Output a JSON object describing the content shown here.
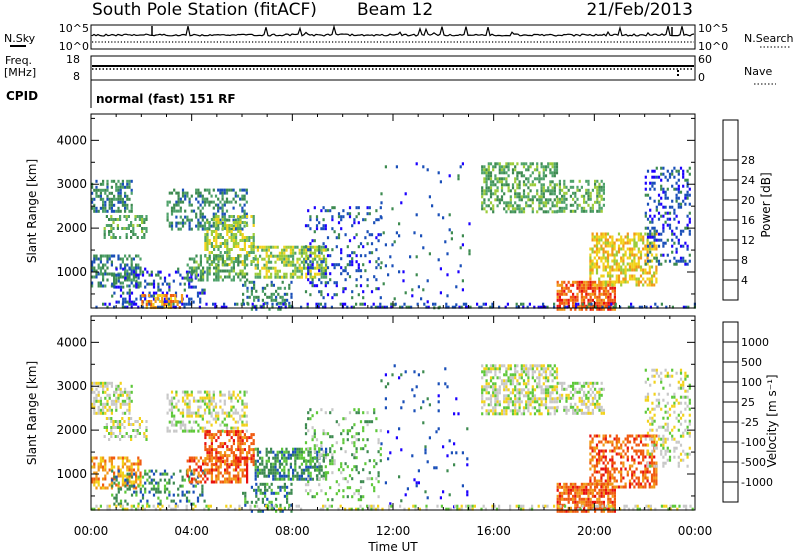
{
  "header": {
    "station": "South Pole Station (fitACF)",
    "beam": "Beam 12",
    "date": "21/Feb/2013"
  },
  "summary_panels": {
    "nsky": {
      "label": "N.Sky",
      "tick_top": "10^5",
      "tick_bottom": "10^0"
    },
    "nsearch": {
      "label": "N.Search",
      "tick_top": "10^5",
      "tick_bottom": "10^0"
    },
    "freq": {
      "label_line1": "Freq.",
      "label_line2": "[MHz]",
      "tick_top": "18",
      "tick_bottom": "8"
    },
    "nave": {
      "label": "Nave",
      "tick_top": "60",
      "tick_bottom": "0"
    },
    "cpid": {
      "label": "CPID",
      "value": "normal (fast) 151 RF"
    }
  },
  "chart_data": [
    {
      "type": "heatmap",
      "name_key": "power",
      "ylabel": "Slant Range [km]",
      "xlabel": "",
      "ylim": [
        180,
        4600
      ],
      "yticks": [
        "1000",
        "2000",
        "3000",
        "4000"
      ],
      "xlim_hours": [
        0,
        24
      ],
      "colorbar": {
        "label": "Power [dB]",
        "colors": [
          "#1c00ff",
          "#1a4fb8",
          "#3d8a50",
          "#4fa26a",
          "#9ccc3a",
          "#f2d21c",
          "#f29818",
          "#f05a10",
          "#e81010"
        ],
        "ticks": [
          "4",
          "8",
          "12",
          "16",
          "20",
          "24",
          "28"
        ],
        "range": [
          0,
          30
        ]
      },
      "regions": [
        {
          "t0": 0.0,
          "t1": 1.6,
          "r0": 2400,
          "r1": 3100,
          "level": 2,
          "density": 0.55
        },
        {
          "t0": 0.5,
          "t1": 2.2,
          "r0": 1800,
          "r1": 2300,
          "level": 3,
          "density": 0.45
        },
        {
          "t0": 0.0,
          "t1": 2.0,
          "r0": 700,
          "r1": 1400,
          "level": 2,
          "density": 0.55
        },
        {
          "t0": 0.8,
          "t1": 4.5,
          "r0": 300,
          "r1": 1100,
          "level": 1,
          "density": 0.3
        },
        {
          "t0": 2.0,
          "t1": 3.6,
          "r0": 180,
          "r1": 500,
          "level": 6,
          "density": 0.5
        },
        {
          "t0": 3.0,
          "t1": 6.2,
          "r0": 2000,
          "r1": 2900,
          "level": 2,
          "density": 0.45
        },
        {
          "t0": 4.5,
          "t1": 6.5,
          "r0": 1200,
          "r1": 2300,
          "level": 4,
          "density": 0.5
        },
        {
          "t0": 3.8,
          "t1": 6.2,
          "r0": 800,
          "r1": 1400,
          "level": 3,
          "density": 0.55
        },
        {
          "t0": 6.5,
          "t1": 9.3,
          "r0": 900,
          "r1": 1600,
          "level": 4,
          "density": 0.6
        },
        {
          "t0": 6.0,
          "t1": 8.0,
          "r0": 180,
          "r1": 800,
          "level": 2,
          "density": 0.35
        },
        {
          "t0": 8.5,
          "t1": 11.5,
          "r0": 400,
          "r1": 2500,
          "level": 1,
          "density": 0.2
        },
        {
          "t0": 11.5,
          "t1": 15.0,
          "r0": 200,
          "r1": 3500,
          "level": 1,
          "density": 0.04
        },
        {
          "t0": 15.5,
          "t1": 18.5,
          "r0": 2400,
          "r1": 3500,
          "level": 3,
          "density": 0.55
        },
        {
          "t0": 18.5,
          "t1": 20.4,
          "r0": 2400,
          "r1": 3100,
          "level": 3,
          "density": 0.45
        },
        {
          "t0": 18.5,
          "t1": 20.8,
          "r0": 180,
          "r1": 800,
          "level": 7,
          "density": 0.75
        },
        {
          "t0": 19.8,
          "t1": 22.5,
          "r0": 700,
          "r1": 1900,
          "level": 5,
          "density": 0.55
        },
        {
          "t0": 22.0,
          "t1": 23.8,
          "r0": 1200,
          "r1": 3400,
          "level": 1,
          "density": 0.3
        },
        {
          "t0": 0.0,
          "t1": 24.0,
          "r0": 180,
          "r1": 300,
          "level": 1,
          "density": 0.35
        }
      ]
    },
    {
      "type": "heatmap",
      "name_key": "velocity",
      "ylabel": "Slant Range [km]",
      "xlabel": "Time UT",
      "ylim": [
        180,
        4600
      ],
      "yticks": [
        "1000",
        "2000",
        "3000",
        "4000"
      ],
      "xticks": [
        "00:00",
        "04:00",
        "08:00",
        "12:00",
        "16:00",
        "20:00",
        "00:00"
      ],
      "xlim_hours": [
        0,
        24
      ],
      "colorbar": {
        "label": "Velocity [m s⁻¹]",
        "colors": [
          "#e81010",
          "#f05a10",
          "#f29818",
          "#f2d21c",
          "#c8c8c8",
          "#5ec83a",
          "#3d8a50",
          "#1a4fb8",
          "#1c00ff"
        ],
        "ticks": [
          "-1000",
          "-500",
          "-100",
          "-25",
          "25",
          "100",
          "500",
          "1000"
        ]
      },
      "regions": [
        {
          "t0": 0.0,
          "t1": 1.6,
          "r0": 2400,
          "r1": 3100,
          "level": 4,
          "density": 0.55
        },
        {
          "t0": 0.5,
          "t1": 2.2,
          "r0": 1800,
          "r1": 2300,
          "level": 4,
          "density": 0.45
        },
        {
          "t0": 0.0,
          "t1": 2.0,
          "r0": 700,
          "r1": 1400,
          "level": 2,
          "density": 0.55
        },
        {
          "t0": 0.8,
          "t1": 4.5,
          "r0": 300,
          "r1": 1100,
          "level": 6,
          "density": 0.3
        },
        {
          "t0": 3.0,
          "t1": 6.2,
          "r0": 2000,
          "r1": 2900,
          "level": 4,
          "density": 0.45
        },
        {
          "t0": 4.5,
          "t1": 6.5,
          "r0": 1200,
          "r1": 2000,
          "level": 1,
          "density": 0.6
        },
        {
          "t0": 3.8,
          "t1": 6.2,
          "r0": 800,
          "r1": 1400,
          "level": 1,
          "density": 0.55
        },
        {
          "t0": 6.5,
          "t1": 9.3,
          "r0": 900,
          "r1": 1600,
          "level": 6,
          "density": 0.6
        },
        {
          "t0": 6.0,
          "t1": 8.0,
          "r0": 180,
          "r1": 800,
          "level": 6,
          "density": 0.35
        },
        {
          "t0": 8.5,
          "t1": 11.5,
          "r0": 400,
          "r1": 2500,
          "level": 5,
          "density": 0.2
        },
        {
          "t0": 11.5,
          "t1": 15.0,
          "r0": 200,
          "r1": 3500,
          "level": 7,
          "density": 0.04
        },
        {
          "t0": 15.5,
          "t1": 18.5,
          "r0": 2400,
          "r1": 3500,
          "level": 4,
          "density": 0.6
        },
        {
          "t0": 18.5,
          "t1": 20.4,
          "r0": 2400,
          "r1": 3100,
          "level": 4,
          "density": 0.5
        },
        {
          "t0": 18.5,
          "t1": 20.8,
          "r0": 180,
          "r1": 800,
          "level": 1,
          "density": 0.75
        },
        {
          "t0": 19.8,
          "t1": 22.5,
          "r0": 700,
          "r1": 1900,
          "level": 1,
          "density": 0.55
        },
        {
          "t0": 22.0,
          "t1": 23.8,
          "r0": 1200,
          "r1": 3400,
          "level": 4,
          "density": 0.3
        },
        {
          "t0": 0.0,
          "t1": 24.0,
          "r0": 180,
          "r1": 300,
          "level": 4,
          "density": 0.35
        }
      ]
    }
  ]
}
